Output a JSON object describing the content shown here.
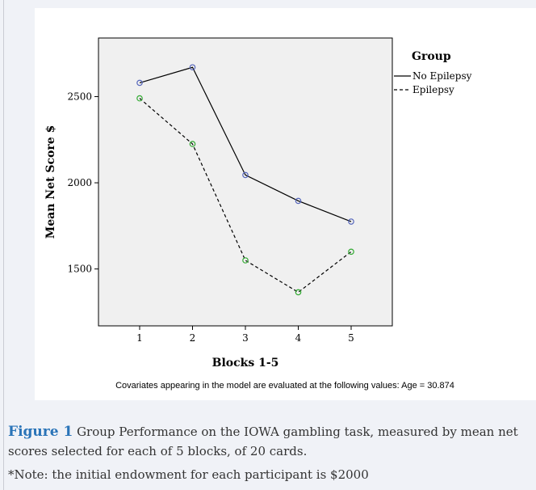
{
  "chart_data": {
    "type": "line",
    "title": "",
    "xlabel": "Blocks 1-5",
    "ylabel": "Mean Net Score  $",
    "categories": [
      "1",
      "2",
      "3",
      "4",
      "5"
    ],
    "x_ticks": [
      "1",
      "2",
      "3",
      "4",
      "5"
    ],
    "y_ticks": [
      "1500",
      "2000",
      "2500"
    ],
    "ylim": [
      1170,
      2840
    ],
    "grid": false,
    "legend": {
      "title": "Group",
      "position": "right"
    },
    "series": [
      {
        "name": "No Epilepsy",
        "values": [
          2580,
          2670,
          2045,
          1895,
          1775
        ],
        "color": "#000000",
        "marker_color": "#5566bb",
        "dash": "solid"
      },
      {
        "name": "Epilepsy",
        "values": [
          2490,
          2225,
          1550,
          1365,
          1600
        ],
        "color": "#000000",
        "marker_color": "#33aa33",
        "dash": "dashed"
      }
    ],
    "footnote": "Covariates appearing in the model are evaluated at the following values: Age = 30.874"
  },
  "caption": {
    "label": "Figure 1",
    "text": " Group Performance on the IOWA gambling task, measured by mean net scores selected for each of 5 blocks, of 20 cards.",
    "note": "*Note: the initial endowment for each participant is $2000"
  }
}
